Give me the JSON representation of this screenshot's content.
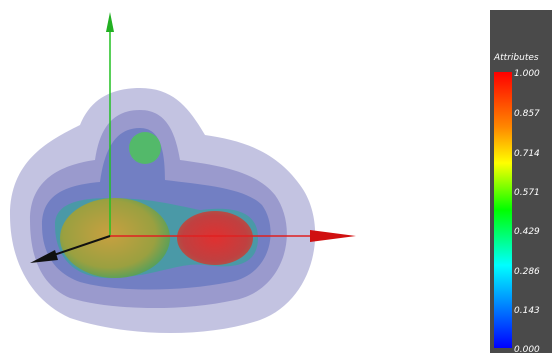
{
  "colorbar": {
    "title": "Attributes",
    "ticks": [
      "1.000",
      "0.857",
      "0.714",
      "0.571",
      "0.429",
      "0.286",
      "0.143",
      "0.000"
    ]
  }
}
